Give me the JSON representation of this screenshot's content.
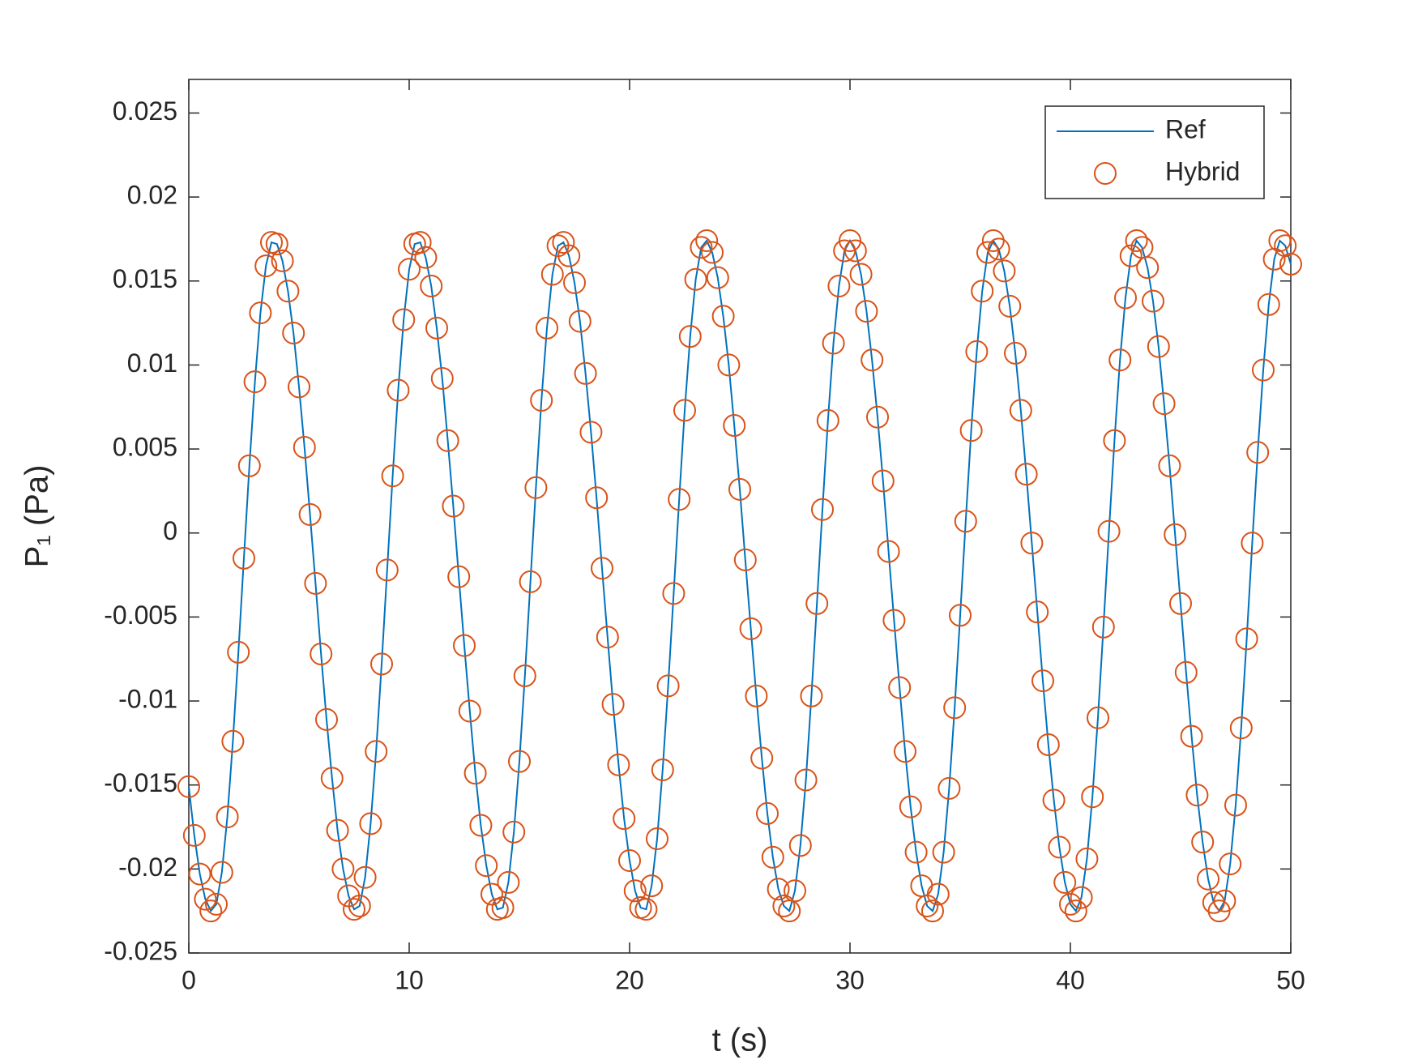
{
  "chart_data": {
    "type": "line",
    "xlabel": "t (s)",
    "ylabel": "P₁ (Pa)",
    "xlim": [
      0,
      50
    ],
    "xticks": [
      0,
      10,
      20,
      30,
      40,
      50
    ],
    "ylim": [
      -0.025,
      0.027
    ],
    "yticks": [
      -0.025,
      -0.02,
      -0.015,
      -0.01,
      -0.005,
      0,
      0.005,
      0.01,
      0.015,
      0.02,
      0.025
    ],
    "legend": "upper right",
    "x": [
      0,
      0.25,
      0.5,
      0.75,
      1,
      1.25,
      1.5,
      1.75,
      2,
      2.25,
      2.5,
      2.75,
      3,
      3.25,
      3.5,
      3.75,
      4,
      4.25,
      4.5,
      4.75,
      5,
      5.25,
      5.5,
      5.75,
      6,
      6.25,
      6.5,
      6.75,
      7,
      7.25,
      7.5,
      7.75,
      8,
      8.25,
      8.5,
      8.75,
      9,
      9.25,
      9.5,
      9.75,
      10,
      10.25,
      10.5,
      10.75,
      11,
      11.25,
      11.5,
      11.75,
      12,
      12.25,
      12.5,
      12.75,
      13,
      13.25,
      13.5,
      13.75,
      14,
      14.25,
      14.5,
      14.75,
      15,
      15.25,
      15.5,
      15.75,
      16,
      16.25,
      16.5,
      16.75,
      17,
      17.25,
      17.5,
      17.75,
      18,
      18.25,
      18.5,
      18.75,
      19,
      19.25,
      19.5,
      19.75,
      20,
      20.25,
      20.5,
      20.75,
      21,
      21.25,
      21.5,
      21.75,
      22,
      22.25,
      22.5,
      22.75,
      23,
      23.25,
      23.5,
      23.75,
      24,
      24.25,
      24.5,
      24.75,
      25,
      25.25,
      25.5,
      25.75,
      26,
      26.25,
      26.5,
      26.75,
      27,
      27.25,
      27.5,
      27.75,
      28,
      28.25,
      28.5,
      28.75,
      29,
      29.25,
      29.5,
      29.75,
      30,
      30.25,
      30.5,
      30.75,
      31,
      31.25,
      31.5,
      31.75,
      32,
      32.25,
      32.5,
      32.75,
      33,
      33.25,
      33.5,
      33.75,
      34,
      34.25,
      34.5,
      34.75,
      35,
      35.25,
      35.5,
      35.75,
      36,
      36.25,
      36.5,
      36.75,
      37,
      37.25,
      37.5,
      37.75,
      38,
      38.25,
      38.5,
      38.75,
      39,
      39.25,
      39.5,
      39.75,
      40,
      40.25,
      40.5,
      40.75,
      41,
      41.25,
      41.5,
      41.75,
      42,
      42.25,
      42.5,
      42.75,
      43,
      43.25,
      43.5,
      43.75,
      44,
      44.25,
      44.5,
      44.75,
      45,
      45.25,
      45.5,
      45.75,
      46,
      46.25,
      46.5,
      46.75,
      47,
      47.25,
      47.5,
      47.75,
      48,
      48.25,
      48.5,
      48.75,
      49,
      49.25,
      49.5,
      49.75,
      50
    ],
    "series": [
      {
        "name": "Ref",
        "color": "#0072bd",
        "marker": "none",
        "values": [
          -0.0151,
          -0.018,
          -0.0203,
          -0.0218,
          -0.0225,
          -0.0221,
          -0.0202,
          -0.0169,
          -0.0124,
          -0.0071,
          -0.0015,
          0.004,
          0.009,
          0.0131,
          0.0159,
          0.0173,
          0.0172,
          0.0162,
          0.0144,
          0.0119,
          0.0087,
          0.0051,
          0.0011,
          -0.003,
          -0.0072,
          -0.0111,
          -0.0146,
          -0.0177,
          -0.02,
          -0.0216,
          -0.0224,
          -0.0222,
          -0.0205,
          -0.0173,
          -0.013,
          -0.0078,
          -0.0022,
          0.0034,
          0.0085,
          0.0127,
          0.0157,
          0.0172,
          0.0173,
          0.0164,
          0.0147,
          0.0122,
          0.0092,
          0.0055,
          0.0016,
          -0.0026,
          -0.0067,
          -0.0106,
          -0.0143,
          -0.0174,
          -0.0198,
          -0.0215,
          -0.0224,
          -0.0223,
          -0.0208,
          -0.0178,
          -0.0136,
          -0.0085,
          -0.0029,
          0.0027,
          0.0079,
          0.0122,
          0.0154,
          0.0171,
          0.0173,
          0.0165,
          0.0149,
          0.0126,
          0.0095,
          0.006,
          0.0021,
          -0.0021,
          -0.0062,
          -0.0102,
          -0.0138,
          -0.017,
          -0.0195,
          -0.0213,
          -0.0223,
          -0.0224,
          -0.021,
          -0.0182,
          -0.0141,
          -0.0091,
          -0.0036,
          0.002,
          0.0073,
          0.0117,
          0.0151,
          0.017,
          0.0174,
          0.0167,
          0.0152,
          0.0129,
          0.01,
          0.0064,
          0.0026,
          -0.0016,
          -0.0057,
          -0.0097,
          -0.0134,
          -0.0167,
          -0.0193,
          -0.0212,
          -0.0222,
          -0.0225,
          -0.0213,
          -0.0186,
          -0.0147,
          -0.0097,
          -0.0042,
          0.0014,
          0.0067,
          0.0113,
          0.0147,
          0.0168,
          0.0174,
          0.0168,
          0.0154,
          0.0132,
          0.0103,
          0.0069,
          0.0031,
          -0.0011,
          -0.0052,
          -0.0092,
          -0.013,
          -0.0163,
          -0.019,
          -0.021,
          -0.0222,
          -0.0225,
          -0.0215,
          -0.019,
          -0.0152,
          -0.0104,
          -0.0049,
          0.0007,
          0.0061,
          0.0108,
          0.0144,
          0.0167,
          0.0174,
          0.0169,
          0.0156,
          0.0135,
          0.0107,
          0.0073,
          0.0035,
          -0.0006,
          -0.0047,
          -0.0088,
          -0.0126,
          -0.0159,
          -0.0187,
          -0.0208,
          -0.0221,
          -0.0225,
          -0.0217,
          -0.0194,
          -0.0157,
          -0.011,
          -0.0056,
          0.0001,
          0.0055,
          0.0103,
          0.014,
          0.0165,
          0.0174,
          0.017,
          0.0158,
          0.0138,
          0.0111,
          0.0077,
          0.004,
          -0.0001,
          -0.0042,
          -0.0083,
          -0.0121,
          -0.0156,
          -0.0184,
          -0.0206,
          -0.022,
          -0.0225,
          -0.0219,
          -0.0197,
          -0.0162,
          -0.0116,
          -0.0063,
          -0.0006,
          0.0048,
          0.0097,
          0.0136,
          0.0163,
          0.0174,
          0.0171,
          0.016
        ]
      },
      {
        "name": "Hybrid",
        "color": "#d95319",
        "marker": "circle",
        "values": [
          -0.0151,
          -0.018,
          -0.0203,
          -0.0218,
          -0.0225,
          -0.0221,
          -0.0202,
          -0.0169,
          -0.0124,
          -0.0071,
          -0.0015,
          0.004,
          0.009,
          0.0131,
          0.0159,
          0.0173,
          0.0172,
          0.0162,
          0.0144,
          0.0119,
          0.0087,
          0.0051,
          0.0011,
          -0.003,
          -0.0072,
          -0.0111,
          -0.0146,
          -0.0177,
          -0.02,
          -0.0216,
          -0.0224,
          -0.0222,
          -0.0205,
          -0.0173,
          -0.013,
          -0.0078,
          -0.0022,
          0.0034,
          0.0085,
          0.0127,
          0.0157,
          0.0172,
          0.0173,
          0.0164,
          0.0147,
          0.0122,
          0.0092,
          0.0055,
          0.0016,
          -0.0026,
          -0.0067,
          -0.0106,
          -0.0143,
          -0.0174,
          -0.0198,
          -0.0215,
          -0.0224,
          -0.0223,
          -0.0208,
          -0.0178,
          -0.0136,
          -0.0085,
          -0.0029,
          0.0027,
          0.0079,
          0.0122,
          0.0154,
          0.0171,
          0.0173,
          0.0165,
          0.0149,
          0.0126,
          0.0095,
          0.006,
          0.0021,
          -0.0021,
          -0.0062,
          -0.0102,
          -0.0138,
          -0.017,
          -0.0195,
          -0.0213,
          -0.0223,
          -0.0224,
          -0.021,
          -0.0182,
          -0.0141,
          -0.0091,
          -0.0036,
          0.002,
          0.0073,
          0.0117,
          0.0151,
          0.017,
          0.0174,
          0.0167,
          0.0152,
          0.0129,
          0.01,
          0.0064,
          0.0026,
          -0.0016,
          -0.0057,
          -0.0097,
          -0.0134,
          -0.0167,
          -0.0193,
          -0.0212,
          -0.0222,
          -0.0225,
          -0.0213,
          -0.0186,
          -0.0147,
          -0.0097,
          -0.0042,
          0.0014,
          0.0067,
          0.0113,
          0.0147,
          0.0168,
          0.0174,
          0.0168,
          0.0154,
          0.0132,
          0.0103,
          0.0069,
          0.0031,
          -0.0011,
          -0.0052,
          -0.0092,
          -0.013,
          -0.0163,
          -0.019,
          -0.021,
          -0.0222,
          -0.0225,
          -0.0215,
          -0.019,
          -0.0152,
          -0.0104,
          -0.0049,
          0.0007,
          0.0061,
          0.0108,
          0.0144,
          0.0167,
          0.0174,
          0.0169,
          0.0156,
          0.0135,
          0.0107,
          0.0073,
          0.0035,
          -0.0006,
          -0.0047,
          -0.0088,
          -0.0126,
          -0.0159,
          -0.0187,
          -0.0208,
          -0.0221,
          -0.0225,
          -0.0217,
          -0.0194,
          -0.0157,
          -0.011,
          -0.0056,
          0.0001,
          0.0055,
          0.0103,
          0.014,
          0.0165,
          0.0174,
          0.017,
          0.0158,
          0.0138,
          0.0111,
          0.0077,
          0.004,
          -0.0001,
          -0.0042,
          -0.0083,
          -0.0121,
          -0.0156,
          -0.0184,
          -0.0206,
          -0.022,
          -0.0225,
          -0.0219,
          -0.0197,
          -0.0162,
          -0.0116,
          -0.0063,
          -0.0006,
          0.0048,
          0.0097,
          0.0136,
          0.0163,
          0.0174,
          0.0171,
          0.016
        ]
      }
    ]
  }
}
